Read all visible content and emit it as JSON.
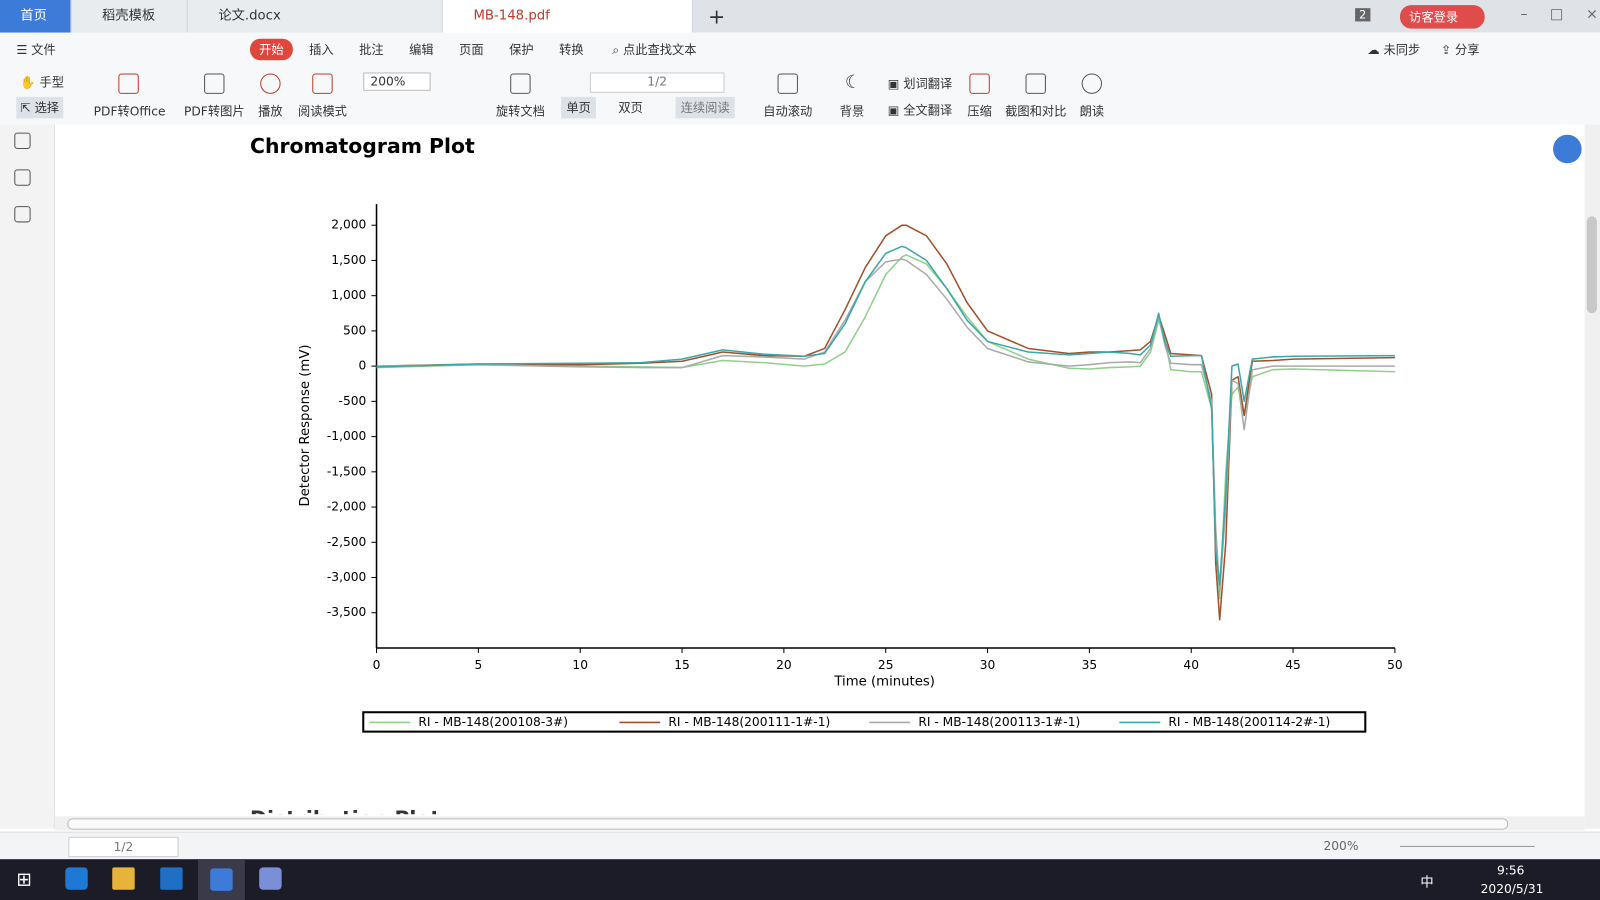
{
  "tabs": [
    "首页",
    "稻壳模板",
    "论文.docx",
    "MB-148.pdf"
  ],
  "window": {
    "badge": "2",
    "login": "访客登录"
  },
  "menu": {
    "items": [
      "文件",
      "开始",
      "插入",
      "批注",
      "编辑",
      "页面",
      "保护",
      "转换"
    ],
    "search": "点此查找文本",
    "sync": "未同步",
    "share": "分享"
  },
  "toolbar": {
    "hand": "手型",
    "select": "选择",
    "pdf_office": "PDF转Office",
    "pdf_image": "PDF转图片",
    "play": "播放",
    "read_mode": "阅读模式",
    "zoom": "200%",
    "rotate": "旋转文档",
    "page": "1/2",
    "single": "单页",
    "double": "双页",
    "continuous": "连续阅读",
    "auto_scroll": "自动滚动",
    "background": "背景",
    "word_translate": "划词翻译",
    "full_translate": "全文翻译",
    "compress": "压缩",
    "compare": "截图和对比",
    "read_aloud": "朗读"
  },
  "next_section": "Distribution Plot",
  "status": {
    "page": "1/2",
    "zoom": "200%"
  },
  "taskbar": {
    "ime": "中",
    "time": "9:56",
    "date": "2020/5/31"
  },
  "chart_data": {
    "type": "line",
    "title": "Chromatogram Plot",
    "x_label": "Time (minutes)",
    "y_label": "Detector Response (mV)",
    "x": [
      0,
      5,
      10,
      13,
      15,
      17,
      19,
      21,
      22,
      23,
      24,
      25,
      25.8,
      26,
      27,
      28,
      29,
      30,
      32,
      34,
      35,
      36,
      37,
      37.5,
      38,
      38.4,
      38.7,
      39,
      40,
      40.5,
      41,
      41.2,
      41.4,
      41.7,
      42,
      42.3,
      42.6,
      43,
      44,
      45,
      50
    ],
    "series": [
      {
        "name": "RI - MB-148(200108-3#)",
        "color": "#8fd18a",
        "values": [
          -20,
          20,
          0,
          -10,
          -20,
          80,
          50,
          0,
          30,
          200,
          700,
          1300,
          1550,
          1580,
          1450,
          1100,
          700,
          350,
          100,
          -30,
          -40,
          -20,
          -10,
          0,
          200,
          650,
          400,
          -50,
          -80,
          -80,
          -600,
          -2500,
          -3300,
          -1500,
          -400,
          -300,
          -700,
          -150,
          -50,
          -40,
          -80
        ]
      },
      {
        "name": "RI - MB-148(200111-1#-1)",
        "color": "#a0522d",
        "values": [
          0,
          30,
          20,
          40,
          70,
          200,
          150,
          140,
          250,
          800,
          1400,
          1850,
          2000,
          2000,
          1850,
          1450,
          900,
          500,
          250,
          180,
          200,
          200,
          220,
          230,
          350,
          720,
          450,
          180,
          160,
          150,
          -400,
          -2800,
          -3600,
          -2500,
          -200,
          -150,
          -700,
          70,
          80,
          100,
          120
        ]
      },
      {
        "name": "RI - MB-148(200113-1#-1)",
        "color": "#aaaaaa",
        "values": [
          0,
          20,
          -10,
          -20,
          -20,
          150,
          130,
          100,
          200,
          650,
          1200,
          1480,
          1520,
          1500,
          1300,
          950,
          550,
          250,
          60,
          0,
          20,
          50,
          60,
          50,
          250,
          700,
          300,
          40,
          20,
          20,
          -500,
          -2300,
          -3200,
          -2000,
          -200,
          -250,
          -900,
          -50,
          0,
          0,
          0
        ]
      },
      {
        "name": "RI - MB-148(200114-2#-1)",
        "color": "#3aa8a8",
        "values": [
          -10,
          30,
          40,
          50,
          100,
          230,
          170,
          140,
          180,
          600,
          1200,
          1600,
          1700,
          1680,
          1500,
          1100,
          650,
          350,
          200,
          160,
          180,
          200,
          180,
          160,
          300,
          750,
          350,
          140,
          150,
          150,
          -600,
          -2600,
          -3100,
          -1800,
          0,
          30,
          -500,
          100,
          130,
          140,
          150
        ]
      }
    ],
    "xlim": [
      0,
      50
    ],
    "xticks": [
      0,
      5,
      10,
      15,
      20,
      25,
      30,
      35,
      40,
      45,
      50
    ],
    "ylim": [
      -4000,
      2300
    ],
    "yticks": [
      {
        "value": 2000,
        "label": "2,000"
      },
      {
        "value": 1500,
        "label": "1,500"
      },
      {
        "value": 1000,
        "label": "1,000"
      },
      500,
      0,
      -500,
      {
        "value": -1000,
        "label": "-1,000"
      },
      {
        "value": -1500,
        "label": "-1,500"
      },
      {
        "value": -2000,
        "label": "-2,000"
      },
      {
        "value": -2500,
        "label": "-2,500"
      },
      {
        "value": -3000,
        "label": "-3,000"
      },
      {
        "value": -3500,
        "label": "-3,500"
      }
    ],
    "grid": false,
    "legend": "bottom"
  }
}
